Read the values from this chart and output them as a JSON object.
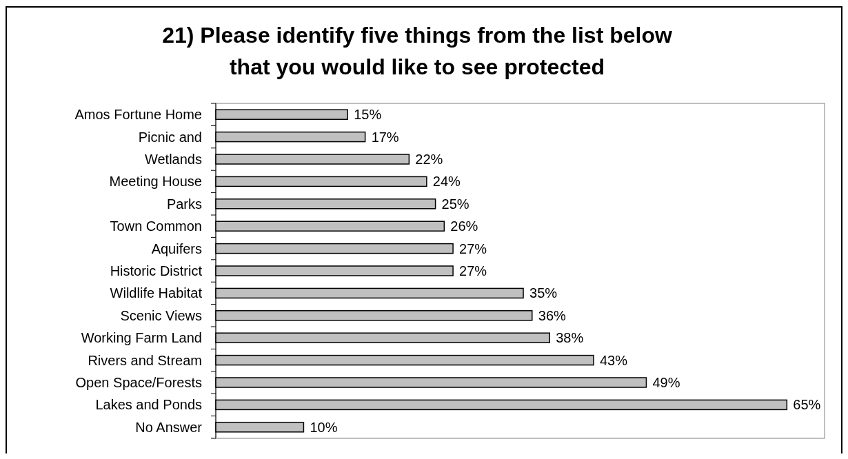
{
  "chart_data": {
    "type": "bar",
    "orientation": "horizontal",
    "title": "21) Please identify five things from the list below that you would like to see protected",
    "categories": [
      "Amos Fortune Home",
      "Picnic and",
      "Wetlands",
      "Meeting House",
      "Parks",
      "Town Common",
      "Aquifers",
      "Historic District",
      "Wildlife Habitat",
      "Scenic Views",
      "Working Farm Land",
      "Rivers and Stream",
      "Open Space/Forests",
      "Lakes and Ponds",
      "No Answer"
    ],
    "values": [
      15,
      17,
      22,
      24,
      25,
      26,
      27,
      27,
      35,
      36,
      38,
      43,
      49,
      65,
      10
    ],
    "value_labels": [
      "15%",
      "17%",
      "22%",
      "24%",
      "25%",
      "26%",
      "27%",
      "27%",
      "35%",
      "36%",
      "38%",
      "43%",
      "49%",
      "65%",
      "10%"
    ],
    "color": "#c0c0c0"
  }
}
